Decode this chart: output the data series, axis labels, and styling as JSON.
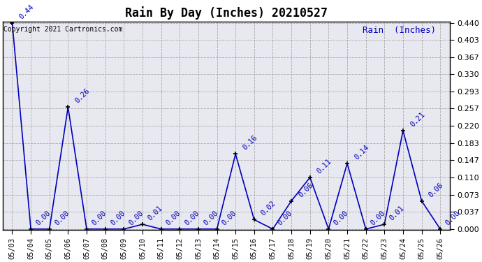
{
  "title": "Rain By Day (Inches) 20210527",
  "copyright_text": "Copyright 2021 Cartronics.com",
  "legend_label": "Rain  (Inches)",
  "dates": [
    "05/03",
    "05/04",
    "05/05",
    "05/06",
    "05/07",
    "05/08",
    "05/09",
    "05/10",
    "05/11",
    "05/12",
    "05/13",
    "05/14",
    "05/15",
    "05/16",
    "05/17",
    "05/18",
    "05/19",
    "05/20",
    "05/21",
    "05/22",
    "05/23",
    "05/24",
    "05/25",
    "05/26"
  ],
  "values": [
    0.44,
    0.0,
    0.0,
    0.26,
    0.0,
    0.0,
    0.0,
    0.01,
    0.0,
    0.0,
    0.0,
    0.0,
    0.16,
    0.02,
    0.0,
    0.06,
    0.11,
    0.0,
    0.14,
    0.0,
    0.01,
    0.21,
    0.06,
    0.0
  ],
  "line_color": "#0000bb",
  "marker": "+",
  "marker_size": 5,
  "marker_color": "#000000",
  "background_color": "#ffffff",
  "plot_bg_color": "#e8e8f0",
  "grid_color": "#aaaaaa",
  "ylim_min": 0.0,
  "ylim_max": 0.44,
  "yticks": [
    0.0,
    0.037,
    0.073,
    0.11,
    0.147,
    0.183,
    0.22,
    0.257,
    0.293,
    0.33,
    0.367,
    0.403,
    0.44
  ],
  "title_fontsize": 12,
  "annotation_fontsize": 7.5,
  "copyright_fontsize": 7,
  "legend_fontsize": 9,
  "tick_fontsize": 7.5,
  "ytick_fontsize": 8
}
